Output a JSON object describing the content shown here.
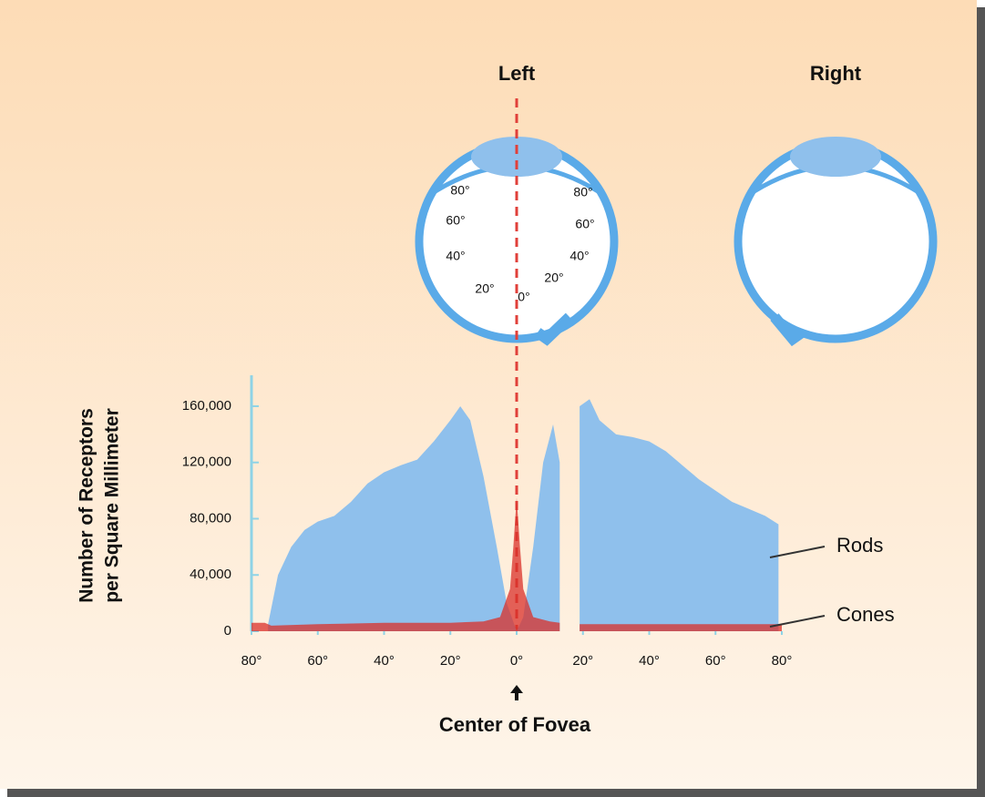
{
  "chart_data": {
    "type": "area",
    "eye_titles": [
      "Left",
      "Right"
    ],
    "eye_labels": [
      "80°",
      "60°",
      "40°",
      "20°",
      "0°",
      "20°",
      "40°",
      "60°",
      "80°"
    ],
    "ylabel": [
      "Number of Receptors",
      "per Square Millimeter"
    ],
    "xlabel": "Center of Fovea",
    "xlim": [
      -80,
      80
    ],
    "xticks": [
      {
        "value": -80,
        "label": "80°"
      },
      {
        "value": -60,
        "label": "60°"
      },
      {
        "value": -40,
        "label": "40°"
      },
      {
        "value": -20,
        "label": "20°"
      },
      {
        "value": 0,
        "label": "0°"
      },
      {
        "value": 20,
        "label": "20°"
      },
      {
        "value": 40,
        "label": "40°"
      },
      {
        "value": 60,
        "label": "60°"
      },
      {
        "value": 80,
        "label": "80°"
      }
    ],
    "ylim": [
      0,
      182000
    ],
    "yticks": [
      0,
      {
        "value": 40000,
        "label": "40,000"
      },
      {
        "value": 80000,
        "label": "80,000"
      },
      {
        "value": 120000,
        "label": "120,000"
      },
      {
        "value": 160000,
        "label": "160,000"
      }
    ],
    "series": [
      {
        "name": "Rods",
        "color": "#8fc0ec",
        "x": [
          -75,
          -72,
          -68,
          -64,
          -60,
          -55,
          -50,
          -45,
          -40,
          -35,
          -30,
          -25,
          -20,
          -17,
          -14,
          -10,
          -6,
          -3,
          0,
          2,
          5,
          8,
          11,
          13,
          16,
          19,
          22,
          25,
          30,
          35,
          40,
          45,
          50,
          55,
          60,
          65,
          70,
          75,
          79
        ],
        "values": [
          5000,
          40000,
          60000,
          72000,
          78000,
          82000,
          92000,
          105000,
          113000,
          118000,
          122000,
          135000,
          150000,
          160000,
          150000,
          110000,
          60000,
          20000,
          0,
          10000,
          60000,
          120000,
          147000,
          120000,
          null,
          160000,
          165000,
          150000,
          140000,
          138000,
          135000,
          128000,
          118000,
          108000,
          100000,
          92000,
          87000,
          82000,
          76000
        ]
      },
      {
        "name": "Cones",
        "color": "#d9302a",
        "x": [
          -80,
          -76,
          -74,
          -60,
          -40,
          -20,
          -10,
          -5,
          -2,
          -1,
          0,
          1,
          2,
          5,
          10,
          13,
          16,
          19,
          40,
          60,
          80
        ],
        "values": [
          6000,
          6000,
          4000,
          5000,
          6000,
          6000,
          7000,
          10000,
          30000,
          60000,
          95000,
          60000,
          30000,
          10000,
          7000,
          6000,
          null,
          5000,
          5000,
          5000,
          5000
        ]
      }
    ]
  }
}
